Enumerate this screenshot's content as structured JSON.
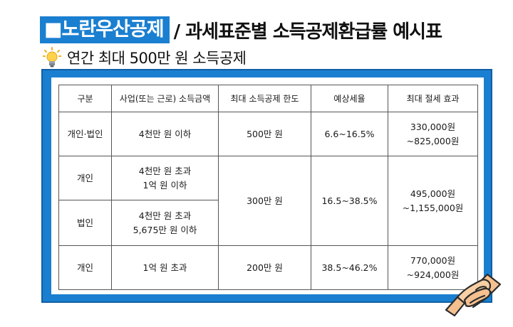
{
  "title": {
    "brand": "■노란우산공제",
    "rest": "/ 과세표준별 소득공제환급률 예시표"
  },
  "subtitle": "연간 최대 500만 원 소득공제",
  "icons": {
    "bulb": "lightbulb-icon",
    "hands": "handshake-icon"
  },
  "colors": {
    "accent": "#1a7fd0"
  },
  "table": {
    "headers": [
      "구분",
      "사업(또는 근로) 소득금액",
      "최대 소득공제 한도",
      "예상세율",
      "최대 절세 효과"
    ],
    "rows": [
      {
        "type": "개인·법인",
        "income": [
          "4천만 원 이하"
        ],
        "limit": "500만 원",
        "rate": "6.6~16.5%",
        "saving": [
          "330,000원",
          "~825,000원"
        ]
      },
      {
        "type": "개인",
        "income": [
          "4천만 원 초과",
          "1억 원 이하"
        ],
        "limit": "300만 원",
        "rate": "16.5~38.5%",
        "saving": [
          "495,000원",
          "~1,155,000원"
        ]
      },
      {
        "type": "법인",
        "income": [
          "4천만 원 초과",
          "5,675만 원 이하"
        ]
      },
      {
        "type": "개인",
        "income": [
          "1억 원 초과"
        ],
        "limit": "200만 원",
        "rate": "38.5~46.2%",
        "saving": [
          "770,000원",
          "~924,000원"
        ]
      }
    ]
  }
}
